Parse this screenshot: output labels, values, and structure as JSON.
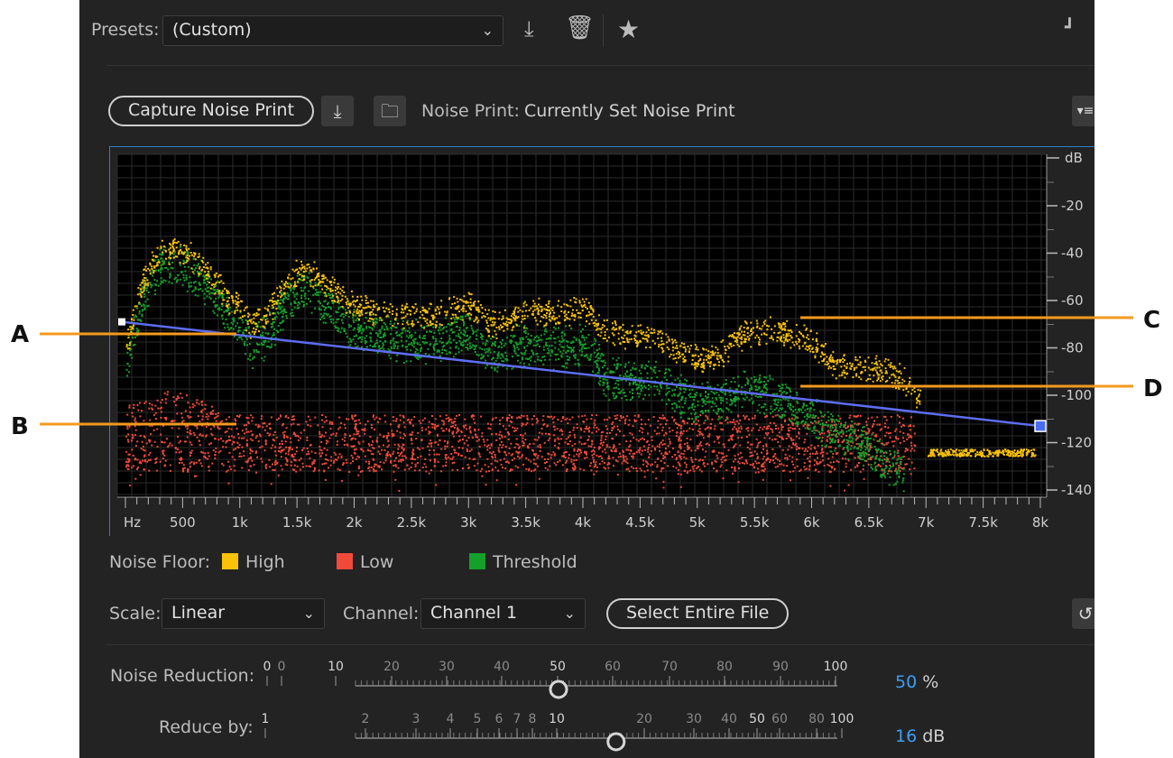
{
  "presets": {
    "label": "Presets:",
    "value": "(Custom)"
  },
  "noise_print": {
    "capture_label": "Capture Noise Print",
    "label": "Noise Print:",
    "value": "Currently Set Noise Print"
  },
  "graph": {
    "db_unit": "dB",
    "db_ticks": [
      {
        "v": -20,
        "label": "-20"
      },
      {
        "v": -40,
        "label": "-40"
      },
      {
        "v": -60,
        "label": "-60"
      },
      {
        "v": -80,
        "label": "-80"
      },
      {
        "v": -100,
        "label": "-100"
      },
      {
        "v": -120,
        "label": "-120"
      },
      {
        "v": -140,
        "label": "-140"
      }
    ],
    "freq_ticks": [
      {
        "hz": 0,
        "label": "Hz"
      },
      {
        "hz": 500,
        "label": "500"
      },
      {
        "hz": 1000,
        "label": "1k"
      },
      {
        "hz": 1500,
        "label": "1.5k"
      },
      {
        "hz": 2000,
        "label": "2k"
      },
      {
        "hz": 2500,
        "label": "2.5k"
      },
      {
        "hz": 3000,
        "label": "3k"
      },
      {
        "hz": 3500,
        "label": "3.5k"
      },
      {
        "hz": 4000,
        "label": "4k"
      },
      {
        "hz": 4500,
        "label": "4.5k"
      },
      {
        "hz": 5000,
        "label": "5k"
      },
      {
        "hz": 5500,
        "label": "5.5k"
      },
      {
        "hz": 6000,
        "label": "6k"
      },
      {
        "hz": 6500,
        "label": "6.5k"
      },
      {
        "hz": 7000,
        "label": "7k"
      },
      {
        "hz": 7500,
        "label": "7.5k"
      },
      {
        "hz": 8000,
        "label": "8k"
      }
    ],
    "threshold_line": {
      "start": {
        "hz": 0,
        "db": -69
      },
      "end": {
        "hz": 8000,
        "db": -113
      }
    },
    "high_profile": [
      [
        0,
        -78
      ],
      [
        150,
        -48
      ],
      [
        300,
        -38
      ],
      [
        450,
        -35
      ],
      [
        600,
        -40
      ],
      [
        750,
        -47
      ],
      [
        900,
        -58
      ],
      [
        1000,
        -60
      ],
      [
        1100,
        -68
      ],
      [
        1250,
        -62
      ],
      [
        1400,
        -50
      ],
      [
        1550,
        -43
      ],
      [
        1700,
        -48
      ],
      [
        1850,
        -55
      ],
      [
        2000,
        -60
      ],
      [
        2200,
        -62
      ],
      [
        2400,
        -63
      ],
      [
        2600,
        -64
      ],
      [
        2800,
        -62
      ],
      [
        3000,
        -60
      ],
      [
        3200,
        -68
      ],
      [
        3400,
        -64
      ],
      [
        3600,
        -62
      ],
      [
        3800,
        -63
      ],
      [
        4000,
        -60
      ],
      [
        4200,
        -70
      ],
      [
        4400,
        -73
      ],
      [
        4600,
        -72
      ],
      [
        4800,
        -78
      ],
      [
        5000,
        -82
      ],
      [
        5200,
        -80
      ],
      [
        5400,
        -72
      ],
      [
        5600,
        -70
      ],
      [
        5800,
        -72
      ],
      [
        6000,
        -75
      ],
      [
        6200,
        -84
      ],
      [
        6400,
        -86
      ],
      [
        6600,
        -87
      ],
      [
        6800,
        -90
      ],
      [
        6950,
        -100
      ]
    ],
    "threshold_profile": [
      [
        0,
        -82
      ],
      [
        150,
        -55
      ],
      [
        300,
        -42
      ],
      [
        450,
        -40
      ],
      [
        600,
        -45
      ],
      [
        750,
        -52
      ],
      [
        900,
        -63
      ],
      [
        1000,
        -66
      ],
      [
        1100,
        -75
      ],
      [
        1250,
        -70
      ],
      [
        1400,
        -56
      ],
      [
        1550,
        -50
      ],
      [
        1700,
        -55
      ],
      [
        1850,
        -62
      ],
      [
        2000,
        -68
      ],
      [
        2200,
        -70
      ],
      [
        2400,
        -72
      ],
      [
        2600,
        -74
      ],
      [
        2800,
        -72
      ],
      [
        3000,
        -70
      ],
      [
        3200,
        -80
      ],
      [
        3400,
        -75
      ],
      [
        3600,
        -74
      ],
      [
        3800,
        -76
      ],
      [
        4000,
        -74
      ],
      [
        4200,
        -88
      ],
      [
        4400,
        -90
      ],
      [
        4600,
        -88
      ],
      [
        4800,
        -95
      ],
      [
        5000,
        -100
      ],
      [
        5200,
        -98
      ],
      [
        5400,
        -92
      ],
      [
        5600,
        -95
      ],
      [
        5800,
        -100
      ],
      [
        6000,
        -105
      ],
      [
        6200,
        -112
      ],
      [
        6400,
        -115
      ],
      [
        6600,
        -124
      ],
      [
        6800,
        -128
      ]
    ],
    "low_band": {
      "hz_start": 0,
      "hz_end": 6900,
      "db_top": -108,
      "db_bottom": -132,
      "peak_hz": 400,
      "peak_db": -97
    },
    "high_tail": {
      "hz_start": 7000,
      "hz_end": 7950,
      "db": -124
    }
  },
  "legend": {
    "label": "Noise Floor:",
    "items": [
      {
        "label": "High",
        "color": "#f9c207"
      },
      {
        "label": "Low",
        "color": "#f14a3a"
      },
      {
        "label": "Threshold",
        "color": "#14a02b"
      }
    ]
  },
  "controls": {
    "scale_label": "Scale:",
    "scale_value": "Linear",
    "channel_label": "Channel:",
    "channel_value": "Channel 1",
    "select_entire_file": "Select Entire File"
  },
  "noise_reduction": {
    "label": "Noise Reduction:",
    "scale_labels": [
      "0",
      "0",
      "10",
      "20",
      "30",
      "40",
      "50",
      "60",
      "70",
      "80",
      "90",
      "100"
    ],
    "value": 50,
    "value_text": "50",
    "unit": "%"
  },
  "reduce_by": {
    "label": "Reduce by:",
    "scale_labels": [
      "1",
      "2",
      "3",
      "4",
      "5",
      "6",
      "7",
      "8",
      "10",
      "20",
      "30",
      "40",
      "50",
      "60",
      "80",
      "100"
    ],
    "value": 16,
    "value_text": "16",
    "unit": "dB"
  },
  "annotations": [
    "A",
    "B",
    "C",
    "D"
  ],
  "colors": {
    "high": "#f9c207",
    "low": "#f14a3a",
    "threshold": "#14a02b",
    "curve": "#5d6df2",
    "accent": "#2a7fd1",
    "annotation_line": "#f49a1e"
  }
}
